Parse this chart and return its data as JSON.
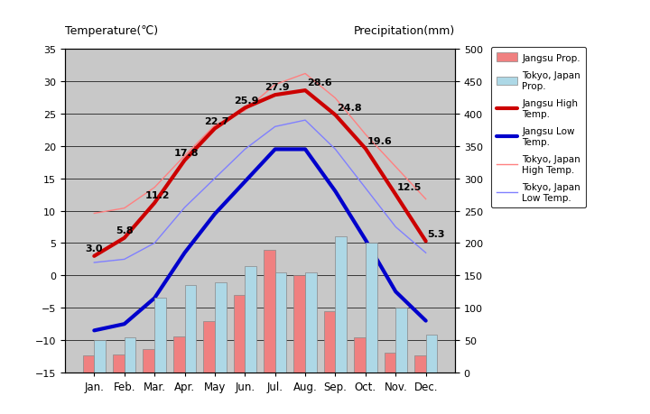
{
  "months": [
    "Jan.",
    "Feb.",
    "Mar.",
    "Apr.",
    "May",
    "Jun.",
    "Jul.",
    "Aug.",
    "Sep.",
    "Oct.",
    "Nov.",
    "Dec."
  ],
  "jangsu_precip": [
    26,
    28,
    36,
    56,
    80,
    120,
    190,
    150,
    95,
    55,
    30,
    26
  ],
  "tokyo_precip": [
    50,
    55,
    115,
    135,
    140,
    165,
    155,
    155,
    210,
    200,
    100,
    58
  ],
  "jangsu_high": [
    3.0,
    5.8,
    11.2,
    17.8,
    22.7,
    25.9,
    27.9,
    28.6,
    24.8,
    19.6,
    12.5,
    5.3
  ],
  "jangsu_low": [
    -8.5,
    -7.5,
    -3.5,
    3.5,
    9.5,
    14.5,
    19.5,
    19.5,
    13.0,
    5.5,
    -2.5,
    -7.0
  ],
  "tokyo_high": [
    9.6,
    10.4,
    13.6,
    18.5,
    23.2,
    25.5,
    29.5,
    31.2,
    27.4,
    21.8,
    16.8,
    11.8
  ],
  "tokyo_low": [
    2.0,
    2.5,
    5.0,
    10.5,
    15.0,
    19.5,
    23.0,
    24.0,
    19.5,
    13.5,
    7.5,
    3.5
  ],
  "jangsu_high_labels": [
    "3.0",
    "5.8",
    "11.2",
    "17.8",
    "22.7",
    "25.9",
    "27.9",
    "28.6",
    "24.8",
    "19.6",
    "12.5",
    "5.3"
  ],
  "temp_ylim": [
    -15.0,
    35.0
  ],
  "temp_ticks": [
    -15,
    -10,
    -5,
    0,
    5,
    10,
    15,
    20,
    25,
    30,
    35
  ],
  "precip_ylim": [
    0,
    500
  ],
  "precip_ticks": [
    0,
    50,
    100,
    150,
    200,
    250,
    300,
    350,
    400,
    450,
    500
  ],
  "bg_color": "#c8c8c8",
  "jangsu_precip_color": "#f08080",
  "tokyo_precip_color": "#add8e6",
  "jangsu_high_color": "#cc0000",
  "jangsu_low_color": "#0000cc",
  "tokyo_high_color": "#ff8080",
  "tokyo_low_color": "#8080ff",
  "title_left": "Temperature(℃)",
  "title_right": "Precipitation(mm)",
  "legend_labels": [
    "Jangsu Prop.",
    "Tokyo, Japan\nProp.",
    "Jangsu High\nTemp.",
    "Jangsu Low\nTemp.",
    "Tokyo, Japan\nHigh Temp.",
    "Tokyo, Japan\nLow Temp."
  ]
}
